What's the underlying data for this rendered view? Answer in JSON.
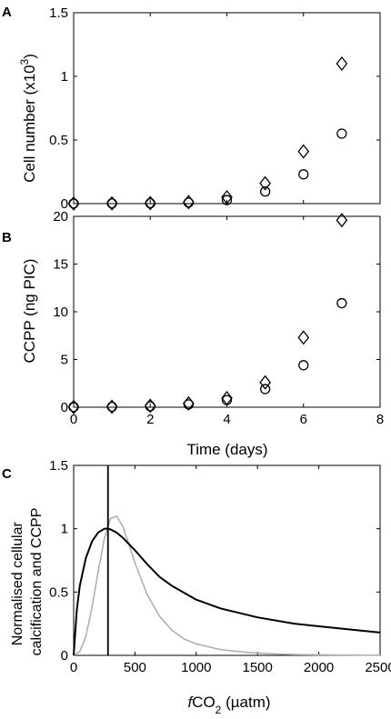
{
  "chart_data": [
    {
      "type": "scatter",
      "panel": "A",
      "xlabel": "",
      "ylabel": "Cell number (x10",
      "ylabel_sup": "3",
      "ylabel_end": ")",
      "xlim": [
        0,
        8
      ],
      "ylim": [
        0,
        1.5
      ],
      "yticks": [
        0,
        0.5,
        1,
        1.5
      ],
      "yticklabels": [
        "0",
        "0.5",
        "1",
        "1.5"
      ],
      "series": [
        {
          "marker": "circle",
          "x": [
            0,
            1,
            2,
            3,
            4,
            5,
            6,
            7
          ],
          "y": [
            0.001,
            0.002,
            0.003,
            0.008,
            0.028,
            0.095,
            0.23,
            0.55
          ]
        },
        {
          "marker": "diamond",
          "x": [
            0,
            1,
            2,
            3,
            4,
            5,
            6,
            7
          ],
          "y": [
            0.001,
            0.002,
            0.004,
            0.012,
            0.05,
            0.16,
            0.41,
            1.1
          ]
        }
      ]
    },
    {
      "type": "scatter",
      "panel": "B",
      "xlabel": "Time (days)",
      "ylabel": "CCPP (ng PIC)",
      "xlim": [
        0,
        8
      ],
      "ylim": [
        0,
        20
      ],
      "xticks": [
        0,
        2,
        4,
        6,
        8
      ],
      "xticklabels": [
        "0",
        "2",
        "4",
        "6",
        "8"
      ],
      "yticks": [
        0,
        5,
        10,
        15,
        20
      ],
      "yticklabels": [
        "0",
        "5",
        "10",
        "15",
        "20"
      ],
      "series": [
        {
          "marker": "circle",
          "x": [
            0,
            1,
            2,
            3,
            4,
            5,
            6,
            7
          ],
          "y": [
            0.02,
            0.05,
            0.1,
            0.3,
            0.75,
            1.9,
            4.4,
            10.9
          ]
        },
        {
          "marker": "diamond",
          "x": [
            0,
            1,
            2,
            3,
            4,
            5,
            6,
            7
          ],
          "y": [
            0.02,
            0.05,
            0.15,
            0.4,
            0.95,
            2.6,
            7.3,
            19.6
          ]
        }
      ]
    },
    {
      "type": "line",
      "panel": "C",
      "xlabel_prefix": "f",
      "xlabel_main": "CO",
      "xlabel_sub": "2",
      "xlabel_end": " (µatm)",
      "ylabel_line1": "Normalised cellular",
      "ylabel_line2": "calcification and CCPP",
      "xlim": [
        0,
        2500
      ],
      "ylim": [
        0,
        1.5
      ],
      "xticks": [
        0,
        500,
        1000,
        1500,
        2000,
        2500
      ],
      "xticklabels": [
        "0",
        "500",
        "1000",
        "1500",
        "2000",
        "2500"
      ],
      "yticks": [
        0,
        0.5,
        1,
        1.5
      ],
      "yticklabels": [
        "0",
        "0.5",
        "1",
        "1.5"
      ],
      "vertical_line_x": 280,
      "series": [
        {
          "color": "#000000",
          "x": [
            0,
            25,
            50,
            100,
            150,
            200,
            250,
            280,
            300,
            350,
            400,
            500,
            600,
            700,
            800,
            1000,
            1200,
            1500,
            1800,
            2000,
            2200,
            2500
          ],
          "y": [
            0,
            0.35,
            0.55,
            0.77,
            0.9,
            0.97,
            1.0,
            1.0,
            0.995,
            0.97,
            0.93,
            0.83,
            0.72,
            0.62,
            0.55,
            0.44,
            0.37,
            0.3,
            0.25,
            0.23,
            0.21,
            0.18
          ]
        },
        {
          "color": "#b0b0b0",
          "x": [
            0,
            50,
            100,
            150,
            200,
            250,
            300,
            350,
            400,
            450,
            500,
            600,
            700,
            800,
            900,
            1000,
            1200,
            1400,
            1600,
            1800,
            2000,
            2500
          ],
          "y": [
            0,
            0.03,
            0.15,
            0.38,
            0.66,
            0.92,
            1.08,
            1.1,
            1.02,
            0.88,
            0.73,
            0.48,
            0.31,
            0.2,
            0.13,
            0.09,
            0.045,
            0.025,
            0.013,
            0.007,
            0.004,
            0.001
          ]
        }
      ]
    }
  ]
}
